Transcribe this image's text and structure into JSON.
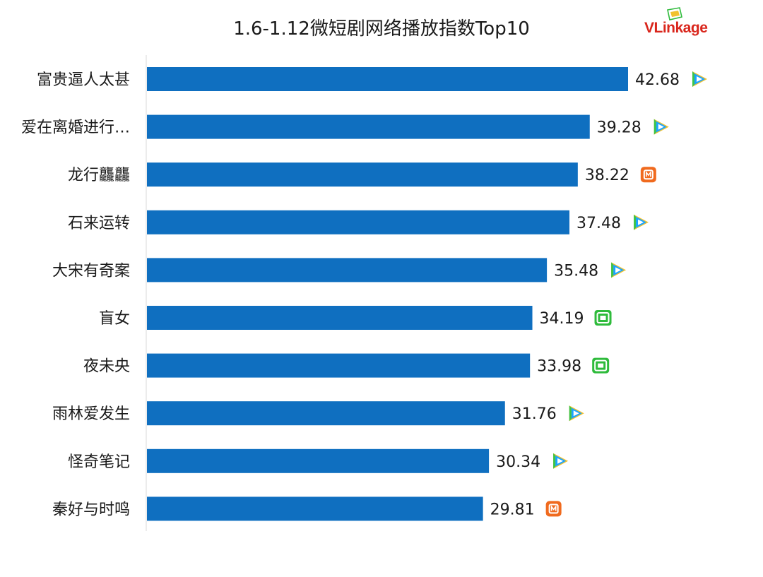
{
  "brand": {
    "logo_text_v": "VL",
    "logo_text_rest": "inkage",
    "logo_color": "#d9261c"
  },
  "chart_data": {
    "type": "bar",
    "orientation": "horizontal",
    "title": "1.6-1.12微短剧网络播放指数Top10",
    "xlabel": "",
    "ylabel": "",
    "xlim": [
      0,
      45
    ],
    "grid": false,
    "bar_color": "#0f6fc0",
    "categories": [
      "富贵逼人太甚",
      "爱在离婚进行…",
      "龙行龘龘",
      "石来运转",
      "大宋有奇案",
      "盲女",
      "夜未央",
      "雨林爱发生",
      "怪奇笔记",
      "秦好与时鸣"
    ],
    "values": [
      42.68,
      39.28,
      38.22,
      37.48,
      35.48,
      34.19,
      33.98,
      31.76,
      30.34,
      29.81
    ],
    "value_labels": [
      "42.68",
      "39.28",
      "38.22",
      "37.48",
      "35.48",
      "34.19",
      "33.98",
      "31.76",
      "30.34",
      "29.81"
    ],
    "platform_icons": [
      "tencent-video-icon",
      "tencent-video-icon",
      "mango-tv-icon",
      "tencent-video-icon",
      "tencent-video-icon",
      "iqiyi-icon",
      "iqiyi-icon",
      "tencent-video-icon",
      "tencent-video-icon",
      "mango-tv-icon"
    ],
    "platform_colors": {
      "mango-tv-icon": "#f06a1e",
      "iqiyi-icon": "#2fbb3c",
      "tencent-video-icon": "#1aa3ff"
    }
  }
}
